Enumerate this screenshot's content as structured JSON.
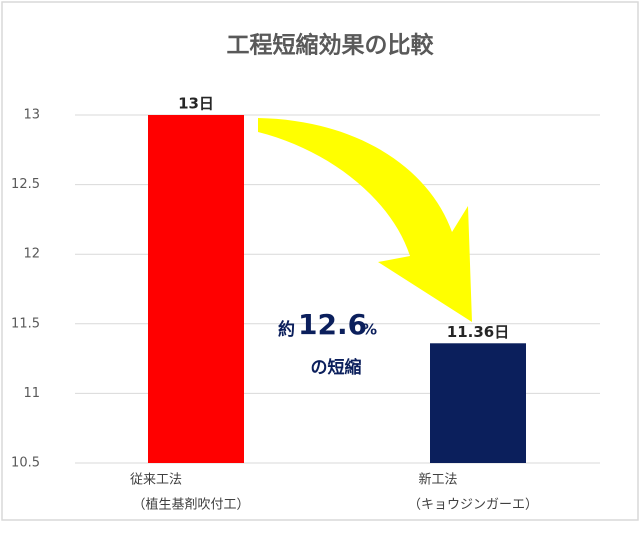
{
  "chart_data": {
    "type": "bar",
    "title": "工程短縮効果の比較",
    "categories": [
      "従来工法",
      "新工法"
    ],
    "category_notes": [
      "（植生基剤吹付工）",
      "（キョウジンガーエ）"
    ],
    "values": [
      13,
      11.36
    ],
    "value_labels": [
      "13日",
      "11.36日"
    ],
    "colors": [
      "#ff0000",
      "#0b1f5c"
    ],
    "ylim": [
      10.5,
      13
    ],
    "yticks": [
      10.5,
      11,
      11.5,
      12,
      12.5,
      13
    ],
    "grid": true,
    "annotation": {
      "prefix": "約",
      "value": "12.6",
      "suffix": "%",
      "line2": "の短縮"
    }
  }
}
